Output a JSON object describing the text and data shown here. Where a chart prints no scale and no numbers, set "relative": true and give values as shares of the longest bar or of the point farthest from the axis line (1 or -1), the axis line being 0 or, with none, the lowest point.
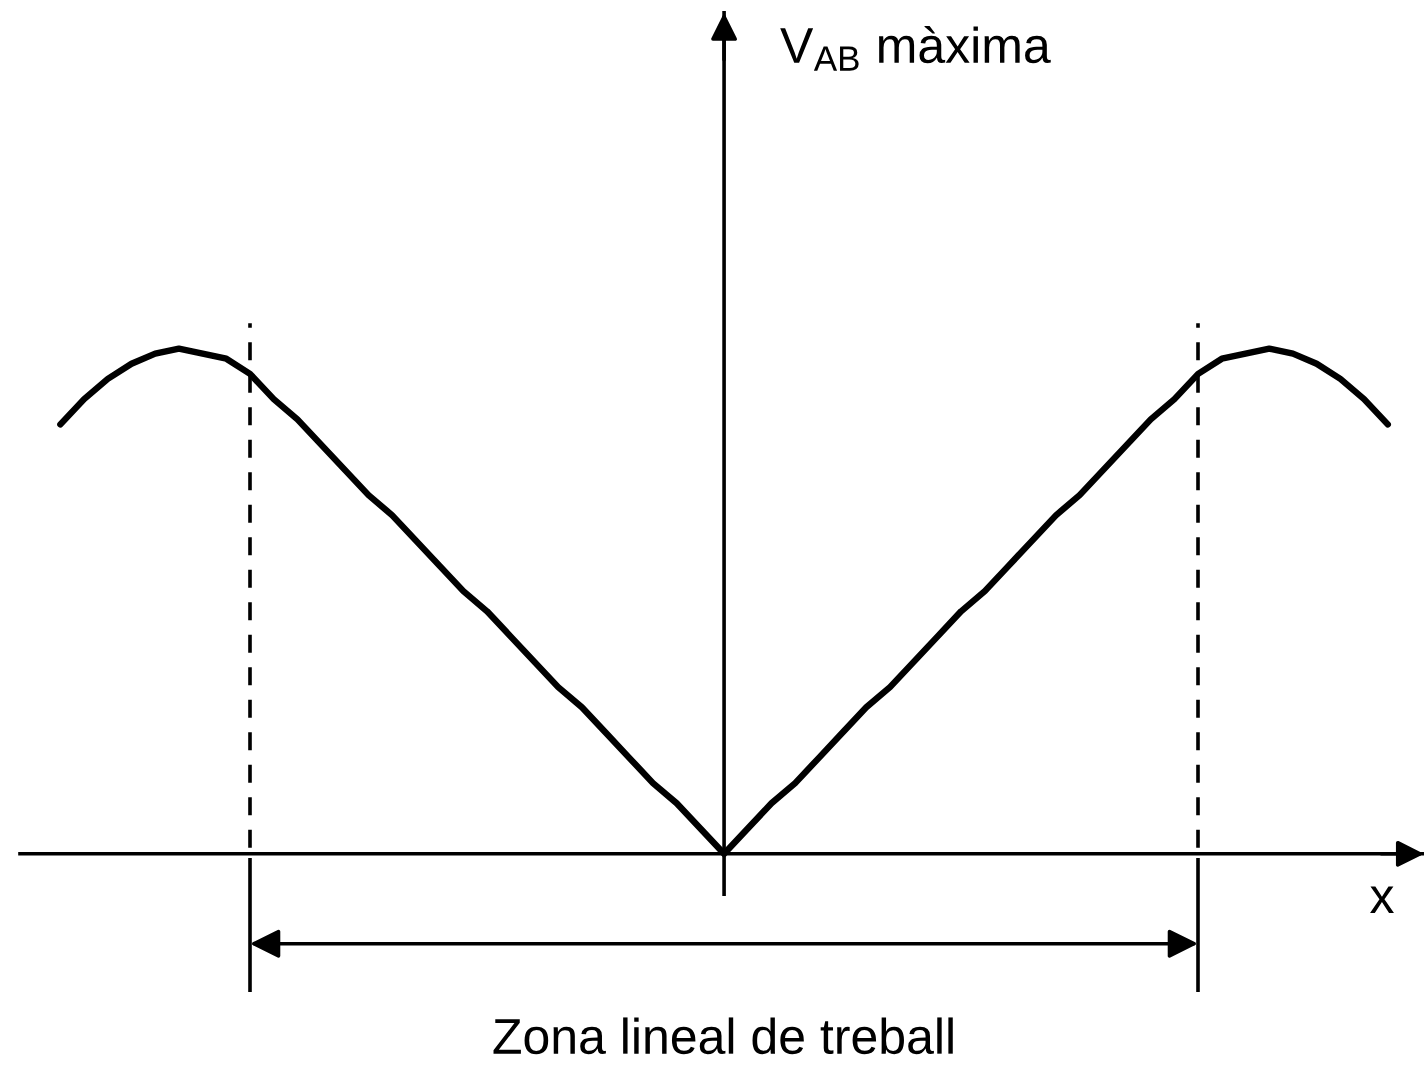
{
  "chart_data": {
    "type": "line",
    "relative": true,
    "xlabel": "x",
    "categories": [
      null,
      null,
      null,
      null,
      null,
      null,
      null,
      null,
      null,
      null,
      null,
      null,
      null,
      null,
      null,
      null,
      null,
      null,
      null,
      null,
      null,
      null,
      null,
      null,
      null,
      null,
      null,
      null,
      null,
      null,
      null,
      null,
      null,
      null,
      null,
      null,
      null,
      null,
      null,
      null,
      null,
      null,
      null,
      null,
      null,
      null,
      null,
      null,
      null,
      null,
      null,
      null,
      null,
      null,
      null,
      null,
      null
    ],
    "series": [
      {
        "color": "#000000",
        "values": [
          0.85,
          0.9,
          0.94,
          0.97,
          0.99,
          1,
          0.99,
          0.98,
          0.95,
          0.9,
          0.86,
          0.81,
          0.76,
          0.71,
          0.67,
          0.62,
          0.57,
          0.52,
          0.48,
          0.43,
          0.38,
          0.33,
          0.29,
          0.24,
          0.19,
          0.14,
          0.1,
          0.05,
          0,
          0.05,
          0.1,
          0.14,
          0.19,
          0.24,
          0.29,
          0.33,
          0.38,
          0.43,
          0.48,
          0.52,
          0.57,
          0.62,
          0.67,
          0.71,
          0.76,
          0.81,
          0.86,
          0.9,
          0.95,
          0.98,
          0.99,
          1,
          0.99,
          0.97,
          0.94,
          0.9,
          0.85
        ]
      }
    ],
    "annotations": [
      "V$_{AB}$ màxima",
      "Zona lineal de treball"
    ],
    "grid": false
  }
}
